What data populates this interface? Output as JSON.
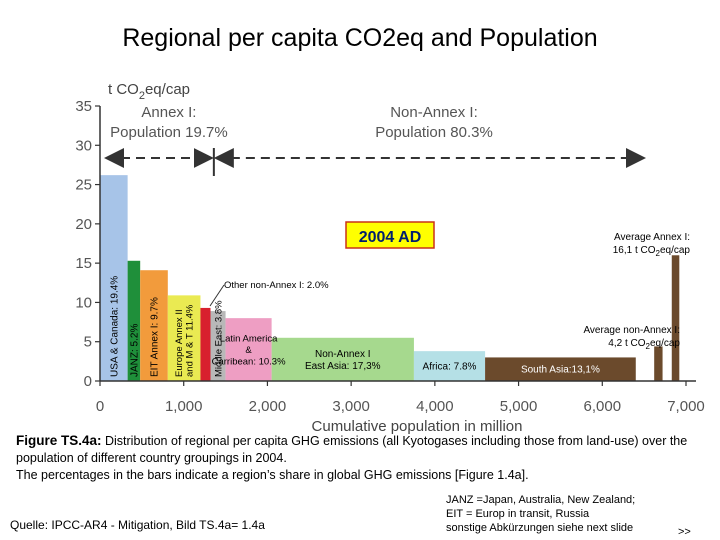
{
  "title": "Regional per capita CO2eq  and  Population",
  "chart_data": {
    "type": "bar",
    "variable_width": true,
    "ylabel": "t CO2eq/cap",
    "xlabel": "Cumulative population in million",
    "xlim": [
      0,
      7000
    ],
    "ylim": [
      0,
      35
    ],
    "xticks": [
      "0",
      "1,000",
      "2,000",
      "3,000",
      "4,000",
      "5,000",
      "6,000",
      "7,000"
    ],
    "yticks": [
      "0",
      "5",
      "10",
      "15",
      "20",
      "25",
      "30",
      "35"
    ],
    "grid": false,
    "annotation_year": "2004 AD",
    "annex1_text": [
      "Annex I:",
      "Population 19.7%"
    ],
    "nonannex1_text": [
      "Non-Annex I:",
      "Population 80.3%"
    ],
    "avg_annex1_text": [
      "Average Annex I:",
      "16,1 t CO2eq/cap"
    ],
    "avg_nonannex1_text": [
      "Average non-Annex I:",
      "4,2 t CO2eq/cap"
    ],
    "other_non_annex_label": "Other non-Annex I: 2.0%",
    "bars": [
      {
        "x0": 0,
        "x1": 330,
        "value": 26.2,
        "label": "USA & Canada: 19.4%",
        "color": "#a7c4e8"
      },
      {
        "x0": 330,
        "x1": 480,
        "value": 15.3,
        "label": "JANZ: 5.2%",
        "color": "#1f8f3a"
      },
      {
        "x0": 480,
        "x1": 810,
        "value": 14.1,
        "label": "EIT Annex I: 9.7%",
        "color": "#f29b3c"
      },
      {
        "x0": 810,
        "x1": 1200,
        "value": 10.9,
        "label": "Europe Annex II and M & T 11.4%",
        "color": "#eaea52"
      },
      {
        "x0": 1200,
        "x1": 1320,
        "value": 9.3,
        "label": "",
        "color": "#d8202e"
      },
      {
        "x0": 1320,
        "x1": 1500,
        "value": 8.9,
        "label": "Middle East: 3.8%",
        "color": "#b8b8b8"
      },
      {
        "x0": 1500,
        "x1": 2050,
        "value": 8.0,
        "label": "Latin America & Carribean: 10.3%",
        "color": "#ee9ec3"
      },
      {
        "x0": 2050,
        "x1": 3750,
        "value": 5.5,
        "label": "Non-Annex I East Asia: 17,3%",
        "color": "#a6d98e"
      },
      {
        "x0": 3750,
        "x1": 4600,
        "value": 3.8,
        "label": "Africa: 7.8%",
        "color": "#b5e0e6"
      },
      {
        "x0": 4600,
        "x1": 6400,
        "value": 3.0,
        "label": "South Asia:13,1%",
        "color": "#6b4a2c"
      },
      {
        "x0": 6620,
        "x1": 6720,
        "value": 4.4,
        "label": "",
        "color": "#6b4a2c"
      },
      {
        "x0": 6830,
        "x1": 6920,
        "value": 16.0,
        "label": "",
        "color": "#6b4a2c"
      }
    ]
  },
  "caption": {
    "heading": "Figure TS.4a:",
    "body": " Distribution of regional per capita GHG emissions (all Kyotogases including those from land-use) over the population of different country groupings in 2004.",
    "body2": " The percentages in the bars indicate a region’s share in global GHG emissions [Figure 1.4a]."
  },
  "source": "Quelle: IPCC-AR4 - Mitigation, Bild TS.4a= 1.4a",
  "abbreviations": [
    "JANZ =Japan, Australia, New Zealand;",
    "EIT = Europ in transit, Russia",
    "sonstige Abkürzungen siehe next slide"
  ],
  "next_link": ">>"
}
